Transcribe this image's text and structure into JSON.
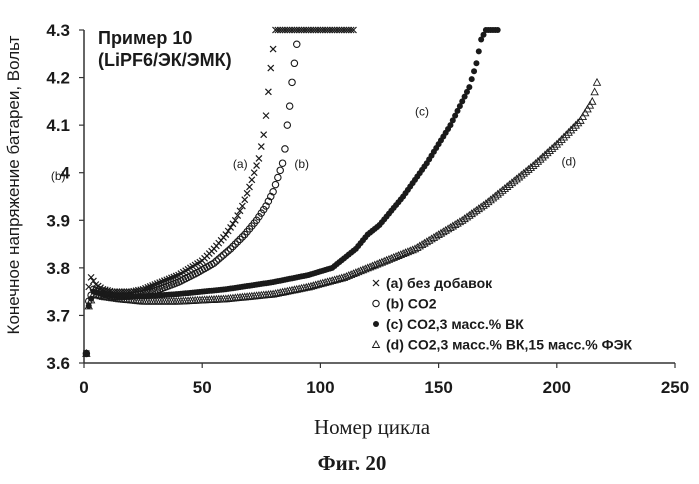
{
  "chart_data": {
    "type": "scatter",
    "title": [
      "Пример 10",
      "(LiPF6/ЭК/ЭМК)"
    ],
    "xlabel": "Номер цикла",
    "ylabel": "Конечное напряжение батареи, Вольт",
    "caption": "Фиг. 20",
    "xlim": [
      0,
      250
    ],
    "ylim": [
      3.6,
      4.3
    ],
    "xticks": [
      "0",
      "50",
      "100",
      "150",
      "200",
      "250"
    ],
    "yticks": [
      "3.6",
      "3.7",
      "3.8",
      "3.9",
      "4",
      "4.1",
      "4.2",
      "4.3"
    ],
    "grid": false,
    "legend_position": "bottom-right",
    "series": [
      {
        "name": "(a) без добавок",
        "marker": "x",
        "annotation": "(a)",
        "points": [
          [
            1,
            3.62
          ],
          [
            2,
            3.76
          ],
          [
            3,
            3.78
          ],
          [
            5,
            3.765
          ],
          [
            8,
            3.755
          ],
          [
            12,
            3.75
          ],
          [
            16,
            3.75
          ],
          [
            20,
            3.75
          ],
          [
            25,
            3.755
          ],
          [
            30,
            3.765
          ],
          [
            35,
            3.775
          ],
          [
            40,
            3.785
          ],
          [
            45,
            3.8
          ],
          [
            50,
            3.815
          ],
          [
            55,
            3.84
          ],
          [
            60,
            3.87
          ],
          [
            64,
            3.9
          ],
          [
            67,
            3.93
          ],
          [
            70,
            3.97
          ],
          [
            72,
            4.0
          ],
          [
            74,
            4.03
          ],
          [
            76,
            4.08
          ],
          [
            77,
            4.12
          ],
          [
            78,
            4.17
          ],
          [
            79,
            4.22
          ],
          [
            80,
            4.26
          ],
          [
            81,
            4.3
          ],
          [
            85,
            4.3
          ],
          [
            90,
            4.3
          ],
          [
            95,
            4.3
          ],
          [
            100,
            4.3
          ],
          [
            105,
            4.3
          ],
          [
            110,
            4.3
          ],
          [
            114,
            4.3
          ]
        ]
      },
      {
        "name": "(b) CO2",
        "marker": "circle-open",
        "annotation": "(b)",
        "points": [
          [
            1,
            3.62
          ],
          [
            2,
            3.73
          ],
          [
            4,
            3.755
          ],
          [
            8,
            3.745
          ],
          [
            12,
            3.74
          ],
          [
            18,
            3.74
          ],
          [
            25,
            3.745
          ],
          [
            32,
            3.755
          ],
          [
            40,
            3.77
          ],
          [
            48,
            3.79
          ],
          [
            55,
            3.81
          ],
          [
            62,
            3.84
          ],
          [
            68,
            3.87
          ],
          [
            73,
            3.9
          ],
          [
            77,
            3.93
          ],
          [
            80,
            3.96
          ],
          [
            82,
            3.99
          ],
          [
            84,
            4.02
          ],
          [
            85,
            4.05
          ],
          [
            86,
            4.1
          ],
          [
            87,
            4.14
          ],
          [
            88,
            4.19
          ],
          [
            89,
            4.23
          ],
          [
            90,
            4.27
          ]
        ]
      },
      {
        "name": "(c) CO2,3 масс.% ВК",
        "marker": "circle-filled",
        "annotation": "(c)",
        "points": [
          [
            1,
            3.62
          ],
          [
            2,
            3.72
          ],
          [
            4,
            3.75
          ],
          [
            8,
            3.745
          ],
          [
            15,
            3.74
          ],
          [
            25,
            3.74
          ],
          [
            40,
            3.745
          ],
          [
            60,
            3.755
          ],
          [
            80,
            3.77
          ],
          [
            95,
            3.785
          ],
          [
            105,
            3.8
          ],
          [
            110,
            3.82
          ],
          [
            115,
            3.84
          ],
          [
            120,
            3.87
          ],
          [
            125,
            3.89
          ],
          [
            130,
            3.92
          ],
          [
            135,
            3.95
          ],
          [
            140,
            3.985
          ],
          [
            145,
            4.02
          ],
          [
            150,
            4.06
          ],
          [
            155,
            4.1
          ],
          [
            160,
            4.15
          ],
          [
            163,
            4.18
          ],
          [
            166,
            4.23
          ],
          [
            168,
            4.28
          ],
          [
            170,
            4.3
          ],
          [
            175,
            4.3
          ]
        ]
      },
      {
        "name": "(d) CO2,3 масс.% ВК,15 масс.% ФЭК",
        "marker": "triangle-open",
        "annotation": "(d)",
        "points": [
          [
            1,
            3.62
          ],
          [
            2,
            3.72
          ],
          [
            4,
            3.745
          ],
          [
            8,
            3.74
          ],
          [
            15,
            3.735
          ],
          [
            25,
            3.73
          ],
          [
            40,
            3.73
          ],
          [
            60,
            3.735
          ],
          [
            80,
            3.745
          ],
          [
            95,
            3.76
          ],
          [
            110,
            3.78
          ],
          [
            120,
            3.8
          ],
          [
            130,
            3.82
          ],
          [
            140,
            3.84
          ],
          [
            150,
            3.87
          ],
          [
            160,
            3.9
          ],
          [
            170,
            3.935
          ],
          [
            180,
            3.975
          ],
          [
            190,
            4.015
          ],
          [
            200,
            4.06
          ],
          [
            210,
            4.11
          ],
          [
            215,
            4.15
          ],
          [
            217,
            4.19
          ]
        ]
      }
    ],
    "annotations": [
      {
        "text": "(a)",
        "x": 63,
        "y": 4.01
      },
      {
        "text": "(b)",
        "x": 89,
        "y": 4.01
      },
      {
        "text": "(c)",
        "x": 140,
        "y": 4.12
      },
      {
        "text": "(d)",
        "x": 202,
        "y": 4.015
      },
      {
        "text": "(b)",
        "x": -14,
        "y": 3.985
      }
    ]
  }
}
